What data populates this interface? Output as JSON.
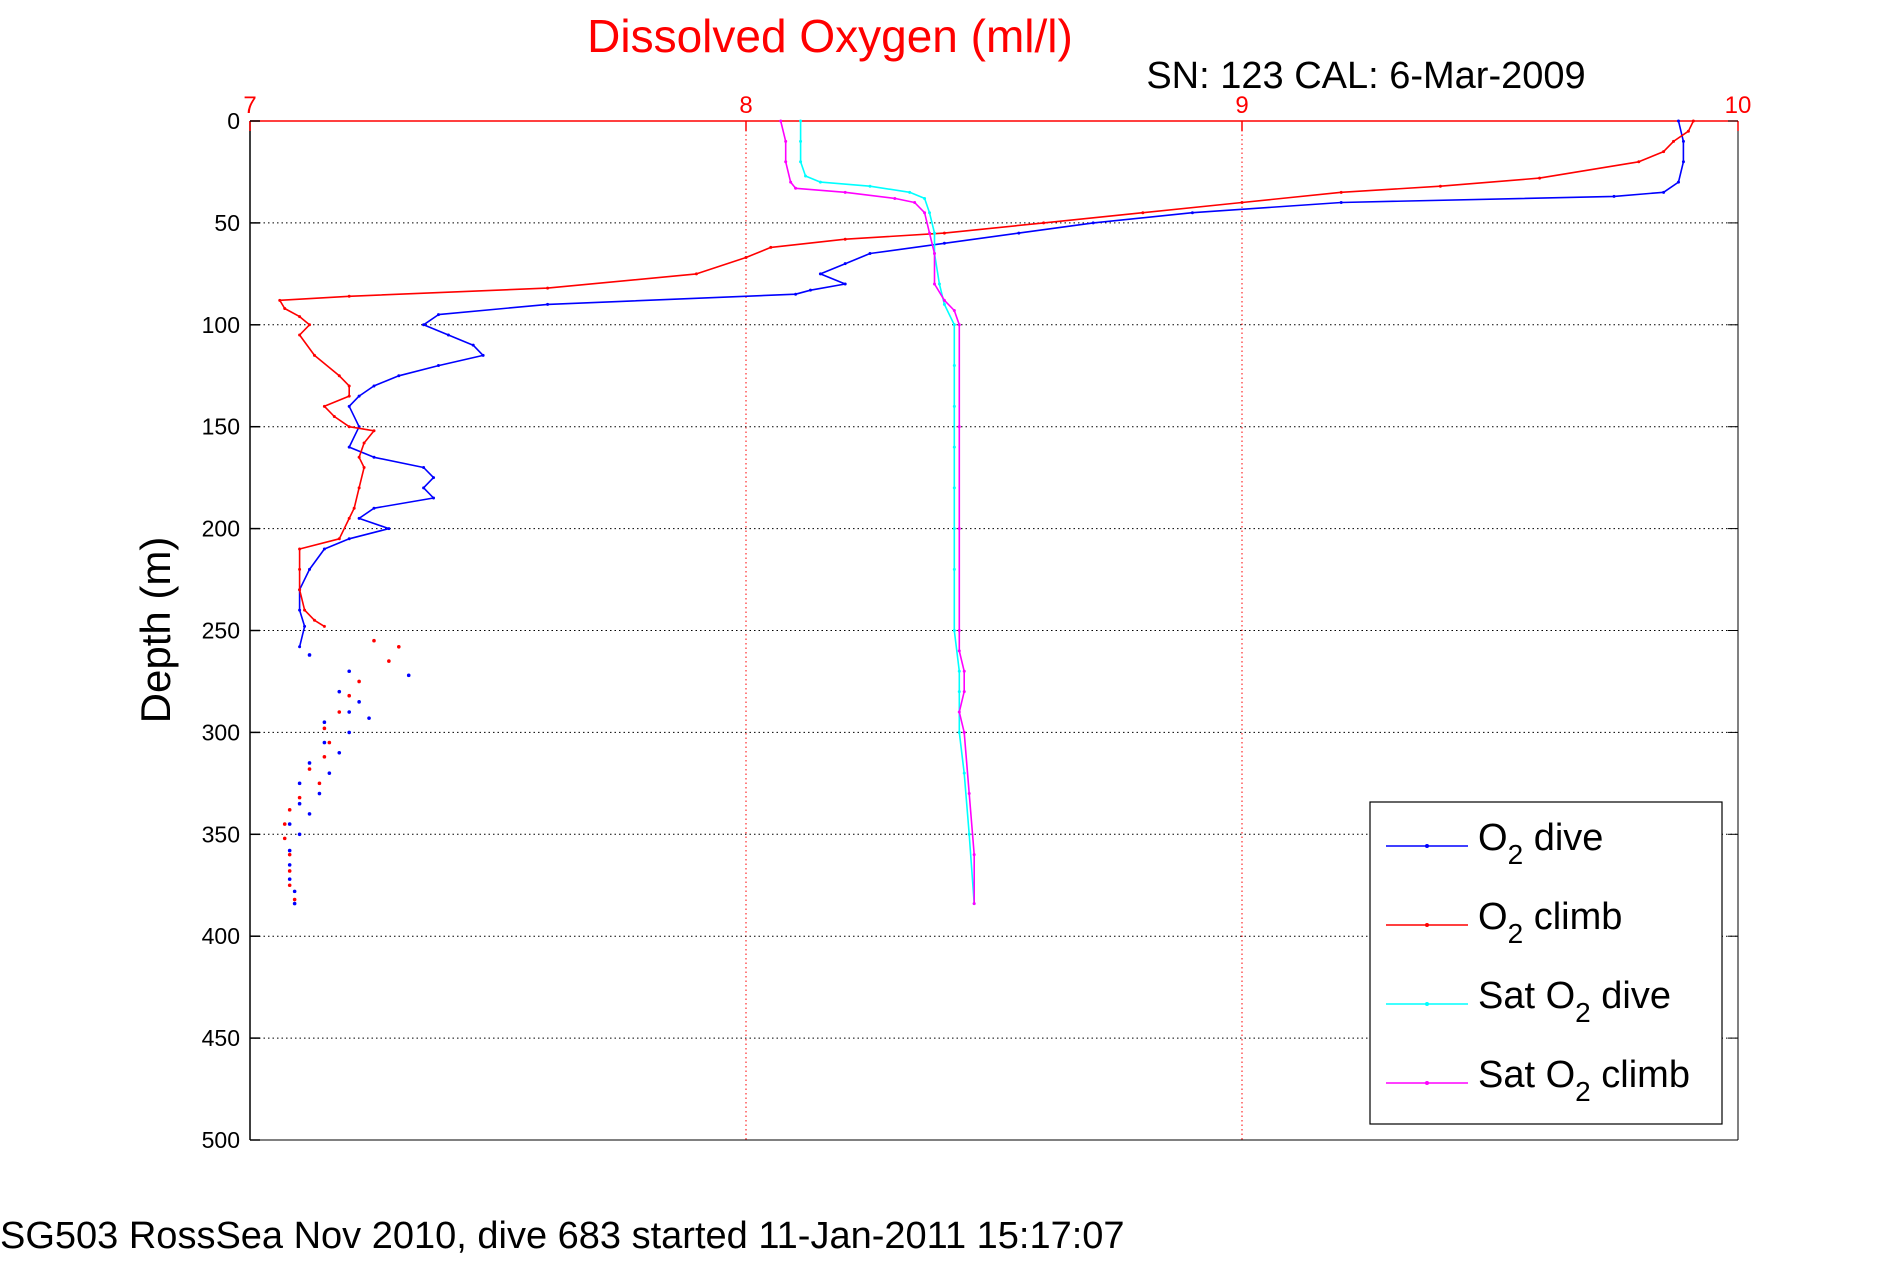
{
  "footer": "SG503 RossSea Nov 2010, dive 683 started 11-Jan-2011 15:17:07",
  "chart_data": {
    "type": "line",
    "title": "Dissolved Oxygen (ml/l)",
    "subtitle": "SN: 123  CAL: 6-Mar-2009",
    "xlabel": "",
    "ylabel": "Depth (m)",
    "xlim": [
      7,
      10
    ],
    "ylim": [
      0,
      500
    ],
    "y_reversed": true,
    "x_axis_position": "top",
    "x_ticks": [
      7,
      8,
      9,
      10
    ],
    "y_ticks": [
      0,
      50,
      100,
      150,
      200,
      250,
      300,
      350,
      400,
      450,
      500
    ],
    "grid": true,
    "legend_position": "bottom-right",
    "colors": {
      "title": "#ff0000",
      "x_axis": "#ff0000",
      "grid_x": "#ff0000",
      "grid_y": "#000000"
    },
    "series": [
      {
        "name": "O2 dive",
        "legend_base": "O",
        "legend_sub": "2",
        "legend_rest": " dive",
        "color": "#0000ff",
        "points": [
          [
            9.88,
            0
          ],
          [
            9.89,
            10
          ],
          [
            9.89,
            20
          ],
          [
            9.88,
            30
          ],
          [
            9.85,
            35
          ],
          [
            9.75,
            37
          ],
          [
            9.2,
            40
          ],
          [
            8.9,
            45
          ],
          [
            8.7,
            50
          ],
          [
            8.55,
            55
          ],
          [
            8.4,
            60
          ],
          [
            8.25,
            65
          ],
          [
            8.2,
            70
          ],
          [
            8.15,
            75
          ],
          [
            8.2,
            80
          ],
          [
            8.13,
            83
          ],
          [
            8.1,
            85
          ],
          [
            7.6,
            90
          ],
          [
            7.38,
            95
          ],
          [
            7.35,
            100
          ],
          [
            7.4,
            105
          ],
          [
            7.45,
            110
          ],
          [
            7.47,
            115
          ],
          [
            7.38,
            120
          ],
          [
            7.3,
            125
          ],
          [
            7.25,
            130
          ],
          [
            7.22,
            135
          ],
          [
            7.2,
            140
          ],
          [
            7.22,
            150
          ],
          [
            7.2,
            160
          ],
          [
            7.25,
            165
          ],
          [
            7.35,
            170
          ],
          [
            7.37,
            175
          ],
          [
            7.35,
            180
          ],
          [
            7.37,
            185
          ],
          [
            7.25,
            190
          ],
          [
            7.22,
            195
          ],
          [
            7.28,
            200
          ],
          [
            7.2,
            205
          ],
          [
            7.15,
            210
          ],
          [
            7.12,
            220
          ],
          [
            7.1,
            230
          ],
          [
            7.1,
            240
          ],
          [
            7.11,
            248
          ],
          [
            7.1,
            258
          ]
        ],
        "scatter": [
          [
            7.12,
            262
          ],
          [
            7.2,
            270
          ],
          [
            7.32,
            272
          ],
          [
            7.18,
            280
          ],
          [
            7.22,
            285
          ],
          [
            7.2,
            290
          ],
          [
            7.24,
            293
          ],
          [
            7.15,
            295
          ],
          [
            7.2,
            300
          ],
          [
            7.15,
            305
          ],
          [
            7.18,
            310
          ],
          [
            7.12,
            315
          ],
          [
            7.16,
            320
          ],
          [
            7.1,
            325
          ],
          [
            7.14,
            330
          ],
          [
            7.1,
            335
          ],
          [
            7.12,
            340
          ],
          [
            7.08,
            345
          ],
          [
            7.1,
            350
          ],
          [
            7.08,
            358
          ],
          [
            7.08,
            365
          ],
          [
            7.08,
            372
          ],
          [
            7.09,
            378
          ],
          [
            7.09,
            384
          ]
        ]
      },
      {
        "name": "O2 climb",
        "legend_base": "O",
        "legend_sub": "2",
        "legend_rest": " climb",
        "color": "#ff0000",
        "points": [
          [
            9.91,
            0
          ],
          [
            9.9,
            5
          ],
          [
            9.87,
            10
          ],
          [
            9.85,
            15
          ],
          [
            9.8,
            20
          ],
          [
            9.6,
            28
          ],
          [
            9.4,
            32
          ],
          [
            9.2,
            35
          ],
          [
            9.0,
            40
          ],
          [
            8.8,
            45
          ],
          [
            8.6,
            50
          ],
          [
            8.4,
            55
          ],
          [
            8.2,
            58
          ],
          [
            8.05,
            62
          ],
          [
            8.0,
            67
          ],
          [
            7.9,
            75
          ],
          [
            7.6,
            82
          ],
          [
            7.2,
            86
          ],
          [
            7.06,
            88
          ],
          [
            7.07,
            92
          ],
          [
            7.1,
            96
          ],
          [
            7.12,
            100
          ],
          [
            7.1,
            105
          ],
          [
            7.13,
            115
          ],
          [
            7.18,
            125
          ],
          [
            7.2,
            130
          ],
          [
            7.2,
            135
          ],
          [
            7.15,
            140
          ],
          [
            7.17,
            145
          ],
          [
            7.2,
            150
          ],
          [
            7.25,
            152
          ],
          [
            7.23,
            158
          ],
          [
            7.22,
            165
          ],
          [
            7.23,
            170
          ],
          [
            7.22,
            180
          ],
          [
            7.21,
            190
          ],
          [
            7.2,
            195
          ],
          [
            7.18,
            205
          ],
          [
            7.1,
            210
          ],
          [
            7.1,
            220
          ],
          [
            7.1,
            230
          ],
          [
            7.11,
            240
          ],
          [
            7.13,
            245
          ],
          [
            7.15,
            248
          ]
        ],
        "scatter": [
          [
            7.25,
            255
          ],
          [
            7.3,
            258
          ],
          [
            7.28,
            265
          ],
          [
            7.22,
            275
          ],
          [
            7.2,
            282
          ],
          [
            7.18,
            290
          ],
          [
            7.15,
            298
          ],
          [
            7.16,
            305
          ],
          [
            7.15,
            312
          ],
          [
            7.12,
            318
          ],
          [
            7.14,
            325
          ],
          [
            7.1,
            332
          ],
          [
            7.08,
            338
          ],
          [
            7.07,
            345
          ],
          [
            7.07,
            352
          ],
          [
            7.08,
            360
          ],
          [
            7.08,
            368
          ],
          [
            7.08,
            375
          ],
          [
            7.09,
            382
          ]
        ]
      },
      {
        "name": "Sat O2 dive",
        "legend_base": "Sat O",
        "legend_sub": "2",
        "legend_rest": " dive",
        "color": "#00ffff",
        "points": [
          [
            8.11,
            0
          ],
          [
            8.11,
            10
          ],
          [
            8.11,
            20
          ],
          [
            8.12,
            27
          ],
          [
            8.15,
            30
          ],
          [
            8.25,
            32
          ],
          [
            8.33,
            35
          ],
          [
            8.36,
            38
          ],
          [
            8.37,
            45
          ],
          [
            8.38,
            55
          ],
          [
            8.38,
            65
          ],
          [
            8.39,
            80
          ],
          [
            8.4,
            90
          ],
          [
            8.42,
            100
          ],
          [
            8.42,
            120
          ],
          [
            8.42,
            140
          ],
          [
            8.42,
            160
          ],
          [
            8.42,
            180
          ],
          [
            8.42,
            200
          ],
          [
            8.42,
            220
          ],
          [
            8.42,
            250
          ],
          [
            8.43,
            270
          ],
          [
            8.43,
            280
          ],
          [
            8.43,
            300
          ],
          [
            8.44,
            320
          ],
          [
            8.45,
            350
          ],
          [
            8.46,
            384
          ]
        ]
      },
      {
        "name": "Sat O2 climb",
        "legend_base": "Sat O",
        "legend_sub": "2",
        "legend_rest": " climb",
        "color": "#ff00ff",
        "points": [
          [
            8.07,
            0
          ],
          [
            8.08,
            10
          ],
          [
            8.08,
            20
          ],
          [
            8.09,
            30
          ],
          [
            8.1,
            33
          ],
          [
            8.2,
            35
          ],
          [
            8.3,
            38
          ],
          [
            8.34,
            40
          ],
          [
            8.36,
            45
          ],
          [
            8.37,
            55
          ],
          [
            8.38,
            65
          ],
          [
            8.38,
            80
          ],
          [
            8.4,
            88
          ],
          [
            8.42,
            93
          ],
          [
            8.43,
            100
          ],
          [
            8.43,
            150
          ],
          [
            8.43,
            200
          ],
          [
            8.43,
            250
          ],
          [
            8.43,
            260
          ],
          [
            8.44,
            270
          ],
          [
            8.44,
            280
          ],
          [
            8.43,
            290
          ],
          [
            8.44,
            300
          ],
          [
            8.45,
            330
          ],
          [
            8.46,
            360
          ],
          [
            8.46,
            384
          ]
        ]
      }
    ]
  }
}
